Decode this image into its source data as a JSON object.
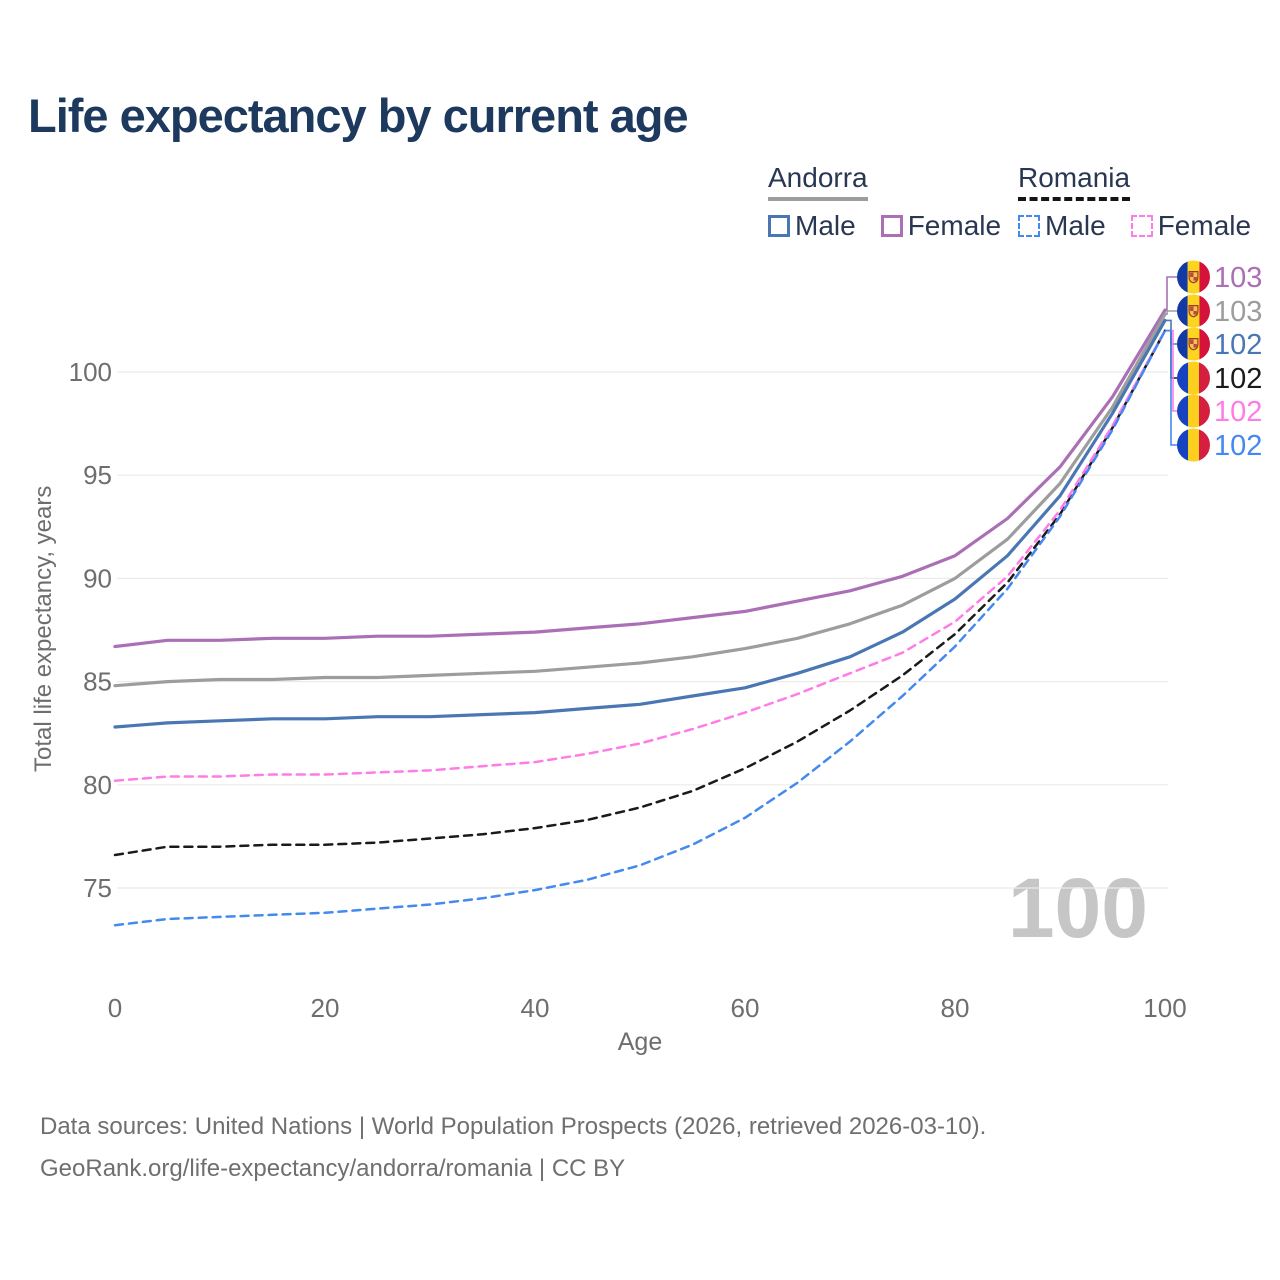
{
  "title": "Life expectancy by current age",
  "watermark": "100",
  "legend": {
    "groups": [
      {
        "name": "Andorra",
        "line_style": "solid",
        "underline_color": "#9d9d9d",
        "items": [
          {
            "label": "Male",
            "color": "#4a77b4",
            "dashed": false
          },
          {
            "label": "Female",
            "color": "#aa6fb5",
            "dashed": false
          }
        ]
      },
      {
        "name": "Romania",
        "line_style": "dashed",
        "underline_color": "#151515",
        "items": [
          {
            "label": "Male",
            "color": "#4489f0",
            "dashed": true
          },
          {
            "label": "Female",
            "color": "#ff7ce6",
            "dashed": true
          }
        ]
      }
    ]
  },
  "chart_data": {
    "type": "line",
    "title": "Life expectancy by current age",
    "xlabel": "Age",
    "ylabel": "Total life expectancy, years",
    "xlim": [
      0,
      100
    ],
    "ylim": [
      72.5,
      103.5
    ],
    "x_ticks": [
      0,
      20,
      40,
      60,
      80,
      100
    ],
    "y_ticks": [
      75,
      80,
      85,
      90,
      95,
      100
    ],
    "grid": "horizontal",
    "legend_position": "top-right",
    "x": [
      0,
      5,
      10,
      15,
      20,
      25,
      30,
      35,
      40,
      45,
      50,
      55,
      60,
      65,
      70,
      75,
      80,
      85,
      90,
      95,
      100
    ],
    "series": [
      {
        "name": "Andorra Female",
        "country": "Andorra",
        "sex": "Female",
        "color": "#aa6fb5",
        "dashed": false,
        "flag": "andorra",
        "end_label": "103",
        "label_row": 0,
        "values": [
          86.7,
          87.0,
          87.0,
          87.1,
          87.1,
          87.2,
          87.2,
          87.3,
          87.4,
          87.6,
          87.8,
          88.1,
          88.4,
          88.9,
          89.4,
          90.1,
          91.1,
          92.9,
          95.4,
          98.8,
          103.0
        ]
      },
      {
        "name": "Andorra Both sexes",
        "country": "Andorra",
        "sex": "Both",
        "color": "#9d9d9d",
        "dashed": false,
        "flag": "andorra",
        "end_label": "103",
        "label_row": 1,
        "values": [
          84.8,
          85.0,
          85.1,
          85.1,
          85.2,
          85.2,
          85.3,
          85.4,
          85.5,
          85.7,
          85.9,
          86.2,
          86.6,
          87.1,
          87.8,
          88.7,
          90.0,
          91.9,
          94.6,
          98.3,
          102.8
        ]
      },
      {
        "name": "Andorra Male",
        "country": "Andorra",
        "sex": "Male",
        "color": "#4a77b4",
        "dashed": false,
        "flag": "andorra",
        "end_label": "102",
        "label_row": 2,
        "values": [
          82.8,
          83.0,
          83.1,
          83.2,
          83.2,
          83.3,
          83.3,
          83.4,
          83.5,
          83.7,
          83.9,
          84.3,
          84.7,
          85.4,
          86.2,
          87.4,
          89.0,
          91.1,
          94.0,
          98.0,
          102.5
        ]
      },
      {
        "name": "Romania Both sexes",
        "country": "Romania",
        "sex": "Both",
        "color": "#1a1a1a",
        "dashed": true,
        "flag": "romania",
        "end_label": "102",
        "label_row": 3,
        "values": [
          76.6,
          77.0,
          77.0,
          77.1,
          77.1,
          77.2,
          77.4,
          77.6,
          77.9,
          78.3,
          78.9,
          79.7,
          80.8,
          82.1,
          83.6,
          85.3,
          87.3,
          89.8,
          93.1,
          97.3,
          102.0
        ]
      },
      {
        "name": "Romania Female",
        "country": "Romania",
        "sex": "Female",
        "color": "#ff7ce6",
        "dashed": true,
        "flag": "romania",
        "end_label": "102",
        "label_row": 4,
        "values": [
          80.2,
          80.4,
          80.4,
          80.5,
          80.5,
          80.6,
          80.7,
          80.9,
          81.1,
          81.5,
          82.0,
          82.7,
          83.5,
          84.4,
          85.4,
          86.4,
          87.9,
          90.1,
          93.3,
          97.4,
          102.0
        ]
      },
      {
        "name": "Romania Male",
        "country": "Romania",
        "sex": "Male",
        "color": "#4489f0",
        "dashed": true,
        "flag": "romania",
        "end_label": "102",
        "label_row": 5,
        "values": [
          73.2,
          73.5,
          73.6,
          73.7,
          73.8,
          74.0,
          74.2,
          74.5,
          74.9,
          75.4,
          76.1,
          77.1,
          78.4,
          80.1,
          82.1,
          84.3,
          86.7,
          89.5,
          93.0,
          97.2,
          102.0
        ]
      }
    ]
  },
  "footer": {
    "line1": "Data sources: United Nations | World Population Prospects (2026, retrieved 2026-03-10).",
    "line2": "GeoRank.org/life-expectancy/andorra/romania | CC BY"
  }
}
